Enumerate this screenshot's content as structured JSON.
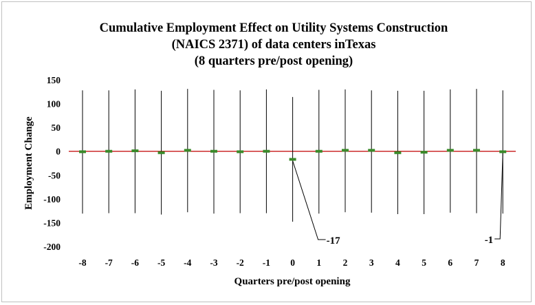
{
  "chart_data": {
    "type": "scatter",
    "title": [
      "Cumulative Employment Effect on Utility Systems Construction",
      "(NAICS 2371) of data centers inTexas",
      "(8 quarters pre/post opening)"
    ],
    "xlabel": "Quarters pre/post opening",
    "ylabel": "Employment Change",
    "x": [
      -8,
      -7,
      -6,
      -5,
      -4,
      -3,
      -2,
      -1,
      0,
      1,
      2,
      3,
      4,
      5,
      6,
      7,
      8
    ],
    "values": [
      -1,
      0,
      1,
      -3,
      2,
      0,
      -1,
      0,
      -17,
      0,
      2,
      2,
      -3,
      -2,
      2,
      2,
      -1
    ],
    "upper": [
      128,
      128,
      130,
      127,
      131,
      129,
      128,
      130,
      114,
      129,
      130,
      128,
      127,
      127,
      130,
      131,
      128
    ],
    "lower": [
      -131,
      -130,
      -130,
      -133,
      -128,
      -131,
      -130,
      -130,
      -148,
      -131,
      -128,
      -129,
      -132,
      -132,
      -129,
      -130,
      -131
    ],
    "ylim": [
      -200,
      150
    ],
    "yticks": [
      150,
      100,
      50,
      0,
      -50,
      -100,
      -150,
      -200
    ],
    "zero_line": true,
    "grid": false,
    "annotations": [
      {
        "x": 0,
        "label": "-17"
      },
      {
        "x": 8,
        "label": "-1"
      }
    ],
    "colors": {
      "marker": "#3a8a2a",
      "zero_line": "#c00000",
      "whisker": "#000000"
    }
  }
}
